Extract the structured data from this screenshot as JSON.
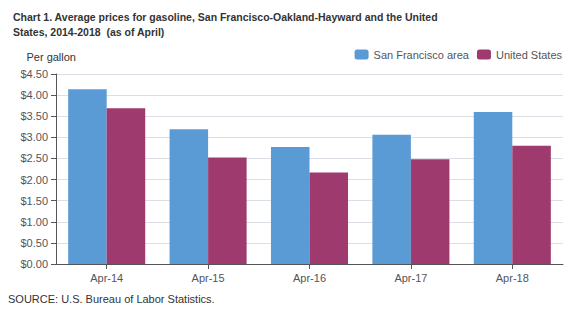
{
  "chart_data": {
    "type": "bar",
    "title": "Chart 1. Average prices for gasoline, San Francisco-Oakland-Hayward and the United",
    "subtitle": "States, 2014-2018  (as of April)",
    "ylabel": "Per gallon",
    "annotations": [
      "SOURCE: U.S. Bureau of Labor Statistics."
    ],
    "categories": [
      "Apr-14",
      "Apr-15",
      "Apr-16",
      "Apr-17",
      "Apr-18"
    ],
    "series": [
      {
        "name": "San Francisco area",
        "color": "#5B9BD5",
        "values": [
          4.14,
          3.19,
          2.77,
          3.06,
          3.6
        ]
      },
      {
        "name": "United States",
        "color": "#9E3A6E",
        "values": [
          3.69,
          2.52,
          2.17,
          2.48,
          2.8
        ]
      }
    ],
    "ylim": [
      0,
      4.5
    ],
    "yticks": [
      {
        "value": 0.0,
        "label": "$0.00"
      },
      {
        "value": 0.5,
        "label": "$0.50"
      },
      {
        "value": 1.0,
        "label": "$1.00"
      },
      {
        "value": 1.5,
        "label": "$1.50"
      },
      {
        "value": 2.0,
        "label": "$2.00"
      },
      {
        "value": 2.5,
        "label": "$2.50"
      },
      {
        "value": 3.0,
        "label": "$3.00"
      },
      {
        "value": 3.5,
        "label": "$3.50"
      },
      {
        "value": 4.0,
        "label": "$4.00"
      },
      {
        "value": 4.5,
        "label": "$4.50"
      }
    ],
    "grid": true,
    "legend": "upper right"
  }
}
